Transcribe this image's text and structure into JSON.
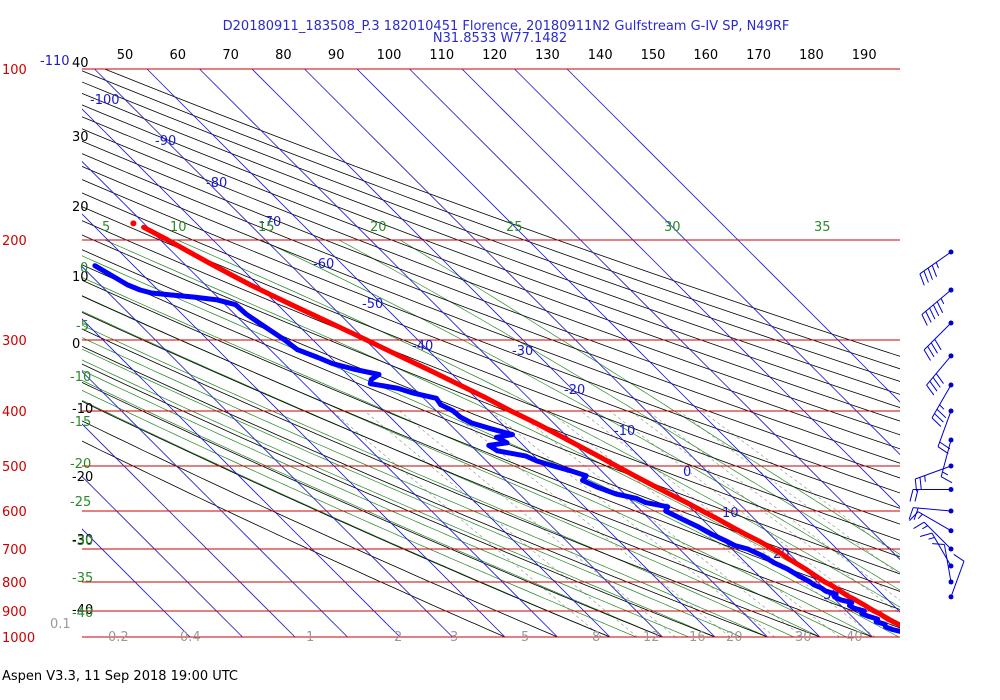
{
  "chart_data": {
    "type": "line",
    "title_line1": "D20180911_183508_P.3 182010451 Florence, 20180911N2 Gulfstream G-IV SP, N49RF",
    "title_line2": "N31.8533 W77.1482",
    "footer": "Aspen V3.3, 11 Sep 2018  19:00 UTC",
    "colors": {
      "title": "#2a2ad0",
      "isobar": "#cc0000",
      "isotherm": "#1a1acc",
      "dry_adiabat": "#000000",
      "moist_adiabat": "#2a8a2a",
      "mixing_ratio": "#9a9a9a",
      "temperature": "#ff0000",
      "dewpoint": "#0000ff",
      "wind": "#0000cc"
    },
    "top_axis_ticks": [
      "50",
      "60",
      "70",
      "80",
      "90",
      "100",
      "110",
      "120",
      "130",
      "140",
      "150",
      "160",
      "170",
      "180",
      "190"
    ],
    "pressure_levels": [
      {
        "p": "100",
        "extra": "-110"
      },
      {
        "p": "200",
        "extra": ""
      },
      {
        "p": "300",
        "extra": ""
      },
      {
        "p": "400",
        "extra": ""
      },
      {
        "p": "500",
        "extra": ""
      },
      {
        "p": "600",
        "extra": ""
      },
      {
        "p": "700",
        "extra": ""
      },
      {
        "p": "800",
        "extra": ""
      },
      {
        "p": "900",
        "extra": ""
      },
      {
        "p": "1000",
        "extra": ""
      }
    ],
    "dry_adiabat_labels": [
      "40",
      "30",
      "20",
      "10",
      "0",
      "-10",
      "-20",
      "-30",
      "-40"
    ],
    "isotherm_labels": [
      "-100",
      "-90",
      "-80",
      "-70",
      "-60",
      "-50",
      "-40",
      "-30",
      "-20",
      "-10",
      "0",
      "10",
      "20",
      "30"
    ],
    "moist_adiabat_labels": [
      "5",
      "10",
      "15",
      "20",
      "25",
      "30",
      "35",
      "0",
      "-5",
      "-10",
      "-15",
      "-20",
      "-25",
      "-30",
      "-35",
      "-40"
    ],
    "mixing_ratio_labels": [
      "0.1",
      "0.2",
      "0.4",
      "1",
      "2",
      "3",
      "5",
      "8",
      "12",
      "16",
      "20",
      "30",
      "40"
    ],
    "temperature_profile": [
      {
        "p": 1000,
        "t": 22.0
      },
      {
        "p": 990,
        "t": 20.5
      },
      {
        "p": 980,
        "t": 19.2
      },
      {
        "p": 970,
        "t": 18.4
      },
      {
        "p": 960,
        "t": 17.8
      },
      {
        "p": 950,
        "t": 17.4
      },
      {
        "p": 940,
        "t": 16.8
      },
      {
        "p": 925,
        "t": 16.2
      },
      {
        "p": 910,
        "t": 15.8
      },
      {
        "p": 900,
        "t": 15.2
      },
      {
        "p": 880,
        "t": 14.6
      },
      {
        "p": 860,
        "t": 13.8
      },
      {
        "p": 850,
        "t": 13.2
      },
      {
        "p": 830,
        "t": 12.6
      },
      {
        "p": 810,
        "t": 12.0
      },
      {
        "p": 800,
        "t": 11.4
      },
      {
        "p": 780,
        "t": 10.8
      },
      {
        "p": 760,
        "t": 10.2
      },
      {
        "p": 750,
        "t": 9.8
      },
      {
        "p": 730,
        "t": 9.0
      },
      {
        "p": 715,
        "t": 8.6
      },
      {
        "p": 700,
        "t": 7.8
      },
      {
        "p": 680,
        "t": 6.8
      },
      {
        "p": 660,
        "t": 5.4
      },
      {
        "p": 640,
        "t": 4.2
      },
      {
        "p": 620,
        "t": 3.0
      },
      {
        "p": 600,
        "t": 1.6
      },
      {
        "p": 580,
        "t": 0.2
      },
      {
        "p": 560,
        "t": -1.4
      },
      {
        "p": 540,
        "t": -3.0
      },
      {
        "p": 520,
        "t": -4.6
      },
      {
        "p": 500,
        "t": -6.2
      },
      {
        "p": 480,
        "t": -7.8
      },
      {
        "p": 460,
        "t": -9.6
      },
      {
        "p": 440,
        "t": -11.4
      },
      {
        "p": 420,
        "t": -13.4
      },
      {
        "p": 400,
        "t": -15.8
      },
      {
        "p": 380,
        "t": -18.0
      },
      {
        "p": 360,
        "t": -20.6
      },
      {
        "p": 340,
        "t": -23.4
      },
      {
        "p": 320,
        "t": -26.6
      },
      {
        "p": 300,
        "t": -29.8
      },
      {
        "p": 280,
        "t": -33.4
      },
      {
        "p": 260,
        "t": -37.4
      },
      {
        "p": 250,
        "t": -39.4
      },
      {
        "p": 240,
        "t": -41.4
      },
      {
        "p": 230,
        "t": -43.2
      },
      {
        "p": 220,
        "t": -45.0
      },
      {
        "p": 210,
        "t": -46.8
      },
      {
        "p": 200,
        "t": -48.6
      },
      {
        "p": 190,
        "t": -50.8
      }
    ],
    "dewpoint_profile": [
      {
        "p": 1000,
        "t": 19.6
      },
      {
        "p": 990,
        "t": 18.8
      },
      {
        "p": 980,
        "t": 16.8
      },
      {
        "p": 970,
        "t": 15.2
      },
      {
        "p": 960,
        "t": 14.4
      },
      {
        "p": 950,
        "t": 14.8
      },
      {
        "p": 940,
        "t": 13.6
      },
      {
        "p": 930,
        "t": 14.4
      },
      {
        "p": 920,
        "t": 13.2
      },
      {
        "p": 910,
        "t": 12.4
      },
      {
        "p": 900,
        "t": 13.4
      },
      {
        "p": 890,
        "t": 12.0
      },
      {
        "p": 880,
        "t": 11.6
      },
      {
        "p": 870,
        "t": 12.6
      },
      {
        "p": 860,
        "t": 11.0
      },
      {
        "p": 850,
        "t": 10.4
      },
      {
        "p": 840,
        "t": 11.2
      },
      {
        "p": 830,
        "t": 9.8
      },
      {
        "p": 820,
        "t": 9.6
      },
      {
        "p": 810,
        "t": 8.8
      },
      {
        "p": 800,
        "t": 8.6
      },
      {
        "p": 780,
        "t": 7.6
      },
      {
        "p": 760,
        "t": 6.8
      },
      {
        "p": 740,
        "t": 5.4
      },
      {
        "p": 720,
        "t": 4.6
      },
      {
        "p": 700,
        "t": 3.0
      },
      {
        "p": 690,
        "t": 1.2
      },
      {
        "p": 680,
        "t": 0.6
      },
      {
        "p": 660,
        "t": -1.0
      },
      {
        "p": 640,
        "t": -2.2
      },
      {
        "p": 620,
        "t": -3.8
      },
      {
        "p": 600,
        "t": -5.4
      },
      {
        "p": 590,
        "t": -4.2
      },
      {
        "p": 580,
        "t": -7.6
      },
      {
        "p": 570,
        "t": -8.6
      },
      {
        "p": 560,
        "t": -11.6
      },
      {
        "p": 545,
        "t": -13.8
      },
      {
        "p": 530,
        "t": -15.4
      },
      {
        "p": 520,
        "t": -13.8
      },
      {
        "p": 510,
        "t": -15.8
      },
      {
        "p": 500,
        "t": -18.2
      },
      {
        "p": 490,
        "t": -20.4
      },
      {
        "p": 480,
        "t": -21.6
      },
      {
        "p": 470,
        "t": -26.0
      },
      {
        "p": 460,
        "t": -26.6
      },
      {
        "p": 455,
        "t": -22.6
      },
      {
        "p": 445,
        "t": -23.6
      },
      {
        "p": 440,
        "t": -20.0
      },
      {
        "p": 430,
        "t": -23.0
      },
      {
        "p": 420,
        "t": -25.6
      },
      {
        "p": 410,
        "t": -26.6
      },
      {
        "p": 400,
        "t": -26.8
      },
      {
        "p": 390,
        "t": -28.0
      },
      {
        "p": 380,
        "t": -27.6
      },
      {
        "p": 372,
        "t": -31.0
      },
      {
        "p": 365,
        "t": -33.0
      },
      {
        "p": 358,
        "t": -37.4
      },
      {
        "p": 352,
        "t": -36.4
      },
      {
        "p": 345,
        "t": -34.0
      },
      {
        "p": 338,
        "t": -37.6
      },
      {
        "p": 330,
        "t": -40.8
      },
      {
        "p": 322,
        "t": -42.4
      },
      {
        "p": 312,
        "t": -44.8
      },
      {
        "p": 300,
        "t": -45.4
      },
      {
        "p": 290,
        "t": -46.2
      },
      {
        "p": 280,
        "t": -47.0
      },
      {
        "p": 270,
        "t": -47.8
      },
      {
        "p": 260,
        "t": -48.0
      },
      {
        "p": 255,
        "t": -50.6
      },
      {
        "p": 252,
        "t": -54.6
      },
      {
        "p": 250,
        "t": -58.4
      },
      {
        "p": 248,
        "t": -61.8
      },
      {
        "p": 245,
        "t": -63.4
      },
      {
        "p": 240,
        "t": -64.8
      },
      {
        "p": 230,
        "t": -66.2
      },
      {
        "p": 222,
        "t": -67.4
      }
    ],
    "isolated_point": {
      "p": 187,
      "t": -52.0
    },
    "wind_barbs": [
      {
        "p": 210,
        "dir": 235,
        "kt": 45
      },
      {
        "p": 245,
        "dir": 230,
        "kt": 55
      },
      {
        "p": 280,
        "dir": 225,
        "kt": 40
      },
      {
        "p": 320,
        "dir": 220,
        "kt": 40
      },
      {
        "p": 360,
        "dir": 210,
        "kt": 35
      },
      {
        "p": 400,
        "dir": 200,
        "kt": 20
      },
      {
        "p": 450,
        "dir": 195,
        "kt": 15
      },
      {
        "p": 500,
        "dir": 250,
        "kt": 25
      },
      {
        "p": 550,
        "dir": 270,
        "kt": 20
      },
      {
        "p": 600,
        "dir": 275,
        "kt": 20
      },
      {
        "p": 650,
        "dir": 300,
        "kt": 15
      },
      {
        "p": 700,
        "dir": 315,
        "kt": 15
      },
      {
        "p": 750,
        "dir": 330,
        "kt": 15
      },
      {
        "p": 800,
        "dir": 350,
        "kt": 10
      },
      {
        "p": 850,
        "dir": 20,
        "kt": 10
      }
    ]
  }
}
